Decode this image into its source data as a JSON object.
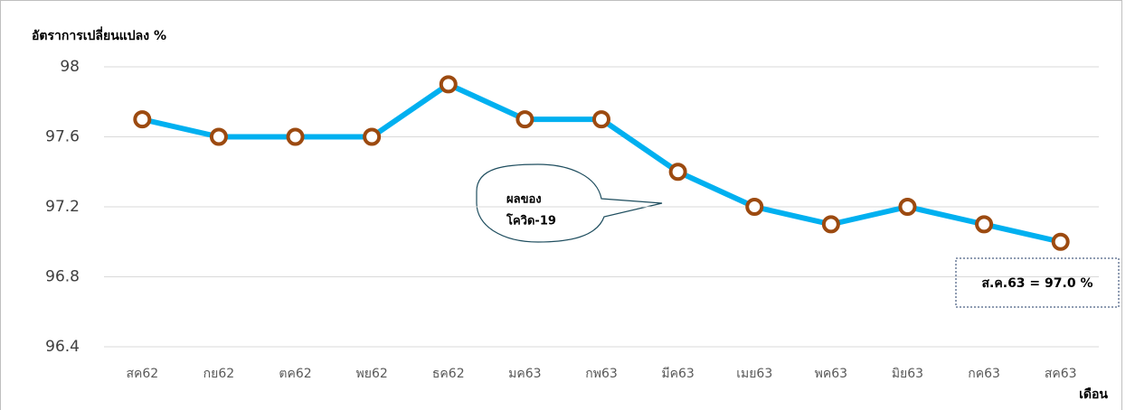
{
  "chart_data": {
    "type": "line",
    "y_label": "อัตราการเปลี่ยนแปลง %",
    "x_label": "เดือน",
    "categories": [
      "สค62",
      "กย62",
      "ตค62",
      "พย62",
      "ธค62",
      "มค63",
      "กพ63",
      "มีค63",
      "เมย63",
      "พค63",
      "มิย63",
      "กค63",
      "สค63"
    ],
    "series": [
      {
        "name": "อัตราการเปลี่ยนแปลง",
        "color": "#00b0f0",
        "marker_color": "#9c4a10",
        "values": [
          97.7,
          97.6,
          97.6,
          97.6,
          97.9,
          97.7,
          97.7,
          97.4,
          97.2,
          97.1,
          97.2,
          97.1,
          97.0
        ]
      }
    ],
    "ylim": [
      96.4,
      98
    ],
    "yticks": [
      96.4,
      96.8,
      97.2,
      97.6,
      98
    ],
    "grid": true,
    "annotations": [
      "ผลของ",
      "โควิด-19",
      "ส.ค.63 = 97.0 %"
    ]
  }
}
